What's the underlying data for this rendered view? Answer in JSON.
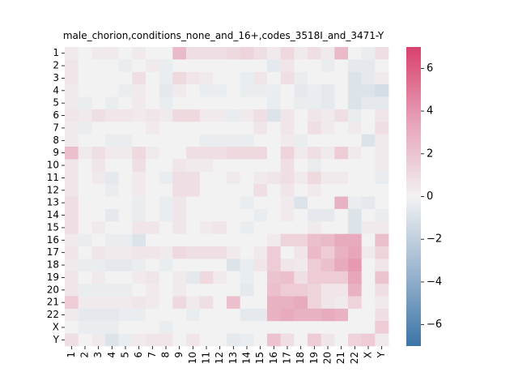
{
  "chart_data": {
    "type": "heatmap",
    "title": "male_chorion,conditions_none_and_16+,codes_3518I_and_3471-Y",
    "xlabel": "",
    "ylabel": "",
    "categories": [
      "1",
      "2",
      "3",
      "4",
      "5",
      "6",
      "7",
      "8",
      "9",
      "10",
      "11",
      "12",
      "13",
      "14",
      "15",
      "16",
      "17",
      "18",
      "19",
      "20",
      "21",
      "22",
      "X",
      "Y"
    ],
    "clim": [
      -7,
      7
    ],
    "colorbar_ticks": [
      6,
      4,
      2,
      0,
      -2,
      -4,
      -6
    ],
    "colorbar_tick_labels": [
      "6",
      "4",
      "2",
      "0",
      "−2",
      "−4",
      "−6"
    ],
    "colormap": {
      "low": "#3b75a7",
      "mid": "#f2f2f2",
      "high": "#d9406e"
    },
    "values": [
      [
        0.3,
        0.0,
        0.3,
        0.3,
        0.0,
        0.3,
        0.0,
        0.0,
        2.2,
        0.8,
        0.8,
        0.8,
        1.0,
        1.2,
        0.8,
        0.3,
        1.0,
        0.3,
        0.8,
        0.3,
        2.2,
        0.0,
        -0.3,
        0.8
      ],
      [
        0.5,
        0.0,
        0.0,
        0.0,
        -0.3,
        0.0,
        0.3,
        -0.3,
        0.0,
        0.0,
        0.0,
        0.0,
        0.0,
        0.0,
        0.0,
        -0.5,
        0.5,
        0.0,
        0.0,
        -0.3,
        0.0,
        -0.5,
        -0.5,
        0.0
      ],
      [
        0.5,
        0.0,
        0.0,
        0.0,
        0.0,
        0.8,
        0.0,
        -0.3,
        1.0,
        0.5,
        0.3,
        0.0,
        0.0,
        -0.3,
        0.5,
        0.0,
        0.8,
        -0.3,
        0.0,
        0.0,
        0.0,
        -0.8,
        -0.5,
        0.3
      ],
      [
        0.3,
        0.0,
        0.0,
        0.0,
        -0.3,
        0.3,
        0.0,
        -0.5,
        0.3,
        0.0,
        -0.3,
        -0.3,
        0.0,
        -0.3,
        -0.3,
        -0.3,
        0.0,
        -0.5,
        -0.3,
        -0.5,
        0.0,
        -0.8,
        -0.8,
        -1.2
      ],
      [
        0.3,
        -0.3,
        0.0,
        -0.3,
        0.0,
        0.3,
        0.0,
        -0.3,
        0.0,
        0.0,
        0.0,
        0.0,
        0.0,
        0.0,
        0.0,
        -0.3,
        0.0,
        -0.3,
        -0.3,
        -0.5,
        0.0,
        -0.8,
        -0.5,
        -0.5
      ],
      [
        0.5,
        0.3,
        0.8,
        0.5,
        0.5,
        0.3,
        0.5,
        0.3,
        1.0,
        1.0,
        0.3,
        0.3,
        -0.3,
        0.3,
        0.8,
        -0.8,
        0.5,
        0.0,
        0.5,
        0.3,
        0.8,
        -0.3,
        0.0,
        0.5
      ],
      [
        0.3,
        -0.3,
        0.0,
        0.0,
        0.0,
        0.0,
        0.3,
        0.0,
        0.0,
        0.0,
        0.0,
        0.0,
        0.0,
        0.0,
        0.5,
        0.0,
        0.5,
        0.0,
        0.8,
        0.3,
        0.0,
        0.3,
        0.0,
        0.8
      ],
      [
        0.3,
        0.0,
        0.0,
        -0.3,
        -0.3,
        0.0,
        0.0,
        0.0,
        0.0,
        0.0,
        -0.3,
        -0.3,
        -0.3,
        -0.3,
        0.0,
        0.0,
        0.3,
        -0.3,
        0.0,
        0.0,
        0.0,
        0.0,
        -0.8,
        0.3
      ],
      [
        2.0,
        0.3,
        0.8,
        0.3,
        0.3,
        1.0,
        0.3,
        0.0,
        0.0,
        0.8,
        0.8,
        0.8,
        1.0,
        1.0,
        1.0,
        0.0,
        1.2,
        0.3,
        0.8,
        0.3,
        1.5,
        0.3,
        0.0,
        0.3
      ],
      [
        0.5,
        0.0,
        0.5,
        0.0,
        0.0,
        0.8,
        0.0,
        0.0,
        0.5,
        0.3,
        0.3,
        0.0,
        0.0,
        0.0,
        0.0,
        0.0,
        0.8,
        0.0,
        -0.3,
        0.0,
        0.0,
        0.0,
        0.0,
        0.3
      ],
      [
        0.5,
        0.0,
        0.3,
        -0.5,
        0.0,
        0.3,
        0.0,
        -0.3,
        0.8,
        0.8,
        0.0,
        0.0,
        0.3,
        0.0,
        0.3,
        0.5,
        0.8,
        0.3,
        1.0,
        0.3,
        0.3,
        0.0,
        0.0,
        -0.3
      ],
      [
        0.5,
        0.0,
        0.0,
        -0.3,
        0.0,
        0.3,
        0.0,
        0.0,
        0.8,
        0.8,
        0.0,
        0.0,
        0.0,
        0.0,
        0.8,
        0.0,
        0.5,
        0.0,
        0.3,
        0.0,
        0.0,
        0.0,
        0.0,
        0.0
      ],
      [
        0.8,
        0.0,
        0.0,
        0.0,
        0.0,
        -0.3,
        0.0,
        -0.3,
        0.5,
        0.0,
        0.0,
        0.0,
        0.0,
        -0.3,
        0.0,
        0.0,
        0.3,
        -0.8,
        0.0,
        0.0,
        2.5,
        -0.3,
        -0.5,
        0.0
      ],
      [
        0.8,
        0.0,
        0.0,
        -0.5,
        0.0,
        -0.3,
        0.0,
        -0.3,
        0.5,
        0.0,
        0.0,
        0.0,
        0.0,
        0.0,
        -0.3,
        0.0,
        0.3,
        0.0,
        -0.5,
        -0.5,
        0.0,
        -0.8,
        0.0,
        -0.3
      ],
      [
        0.8,
        0.0,
        0.3,
        0.0,
        0.0,
        0.5,
        0.5,
        0.0,
        0.5,
        0.0,
        0.3,
        0.5,
        0.0,
        -0.3,
        0.0,
        0.0,
        0.0,
        0.0,
        0.3,
        0.0,
        0.0,
        -0.8,
        0.3,
        0.3
      ],
      [
        0.3,
        -0.3,
        0.0,
        -0.3,
        -0.3,
        -0.8,
        0.0,
        0.0,
        0.0,
        0.0,
        0.0,
        0.0,
        0.0,
        0.0,
        0.0,
        0.3,
        1.2,
        1.2,
        2.0,
        2.2,
        2.8,
        2.8,
        0.0,
        2.0
      ],
      [
        0.5,
        0.0,
        0.5,
        0.3,
        0.3,
        0.5,
        0.5,
        0.3,
        1.0,
        0.8,
        0.8,
        0.8,
        0.3,
        0.0,
        0.3,
        1.5,
        0.0,
        0.5,
        2.2,
        1.5,
        2.5,
        3.0,
        0.3,
        1.2
      ],
      [
        0.3,
        -0.3,
        -0.3,
        -0.5,
        -0.5,
        -0.3,
        0.0,
        -0.3,
        0.0,
        0.0,
        0.0,
        0.0,
        -0.8,
        -0.3,
        0.5,
        1.5,
        0.5,
        0.3,
        1.5,
        2.0,
        2.8,
        3.5,
        0.0,
        0.5
      ],
      [
        0.5,
        0.0,
        0.3,
        0.0,
        0.0,
        0.3,
        0.5,
        0.0,
        0.3,
        -0.5,
        1.0,
        0.3,
        0.0,
        -0.3,
        0.0,
        1.8,
        2.0,
        0.8,
        1.5,
        1.5,
        1.5,
        3.0,
        0.0,
        1.8
      ],
      [
        0.5,
        -0.3,
        -0.3,
        -0.3,
        -0.3,
        0.0,
        0.3,
        0.0,
        0.3,
        0.0,
        0.0,
        0.0,
        0.0,
        -0.5,
        0.0,
        2.0,
        1.5,
        1.5,
        1.2,
        0.5,
        0.5,
        2.5,
        0.0,
        0.8
      ],
      [
        1.5,
        0.3,
        0.3,
        0.3,
        0.3,
        0.5,
        0.3,
        0.0,
        1.0,
        0.3,
        0.8,
        0.0,
        2.0,
        0.0,
        0.0,
        2.5,
        2.5,
        2.8,
        1.2,
        0.5,
        0.3,
        1.2,
        0.0,
        0.3
      ],
      [
        0.3,
        -0.5,
        -0.5,
        -0.5,
        -0.3,
        -0.3,
        0.0,
        0.0,
        0.0,
        -0.3,
        0.0,
        0.0,
        0.0,
        -0.5,
        -0.5,
        2.5,
        2.8,
        2.5,
        2.5,
        2.8,
        2.5,
        0.0,
        0.0,
        0.8
      ],
      [
        0.0,
        -0.3,
        -0.3,
        -0.3,
        0.0,
        0.0,
        0.0,
        -0.3,
        0.0,
        0.0,
        0.0,
        0.0,
        0.0,
        0.0,
        0.0,
        0.0,
        0.0,
        0.0,
        0.0,
        0.0,
        0.0,
        0.0,
        0.0,
        1.5
      ],
      [
        0.8,
        0.0,
        0.3,
        -0.8,
        -0.3,
        0.3,
        0.5,
        0.5,
        0.0,
        0.5,
        0.0,
        0.0,
        -0.5,
        -0.3,
        0.0,
        1.8,
        0.8,
        0.0,
        1.5,
        0.5,
        0.0,
        1.2,
        1.5,
        0.3
      ]
    ]
  }
}
